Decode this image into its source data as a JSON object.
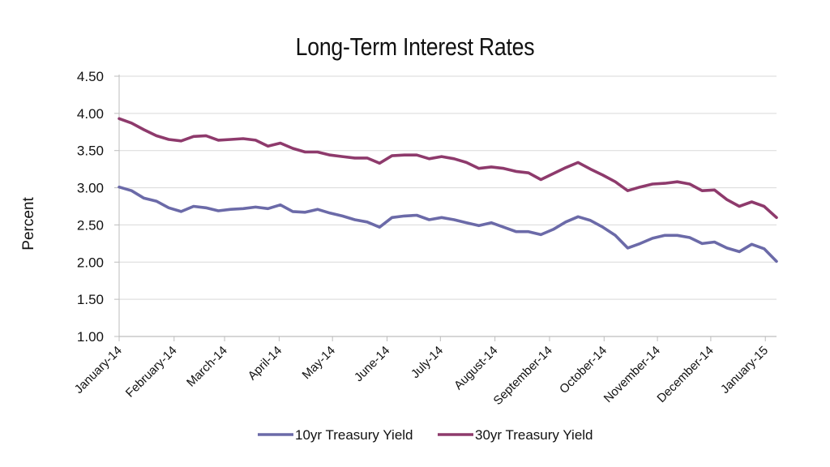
{
  "chart_data": {
    "type": "line",
    "title": "Long-Term Interest Rates",
    "xlabel": "",
    "ylabel": "Percent",
    "ylim": [
      1.0,
      4.5
    ],
    "yticks": [
      "1.00",
      "1.50",
      "2.00",
      "2.50",
      "3.00",
      "3.50",
      "4.00",
      "4.50"
    ],
    "ytick_values": [
      1.0,
      1.5,
      2.0,
      2.5,
      3.0,
      3.5,
      4.0,
      4.5
    ],
    "grid": true,
    "legend_position": "bottom",
    "x_tick_labels": [
      "January-14",
      "February-14",
      "March-14",
      "April-14",
      "May-14",
      "June-14",
      "July-14",
      "August-14",
      "September-14",
      "October-14",
      "November-14",
      "December-14",
      "January-15"
    ],
    "x_tick_positions_weeks": [
      0,
      4.43,
      8.5,
      12.9,
      17.2,
      21.6,
      25.9,
      30.3,
      34.7,
      39.1,
      43.4,
      47.7,
      52.1
    ],
    "points_per_series": 54,
    "series": [
      {
        "name": "10yr Treasury Yield",
        "color": "#6b6aa8",
        "values": [
          3.01,
          2.96,
          2.86,
          2.82,
          2.73,
          2.68,
          2.75,
          2.73,
          2.69,
          2.71,
          2.72,
          2.74,
          2.72,
          2.77,
          2.68,
          2.67,
          2.71,
          2.66,
          2.62,
          2.57,
          2.54,
          2.47,
          2.6,
          2.62,
          2.63,
          2.57,
          2.6,
          2.57,
          2.53,
          2.49,
          2.53,
          2.47,
          2.41,
          2.41,
          2.37,
          2.44,
          2.54,
          2.61,
          2.56,
          2.47,
          2.36,
          2.19,
          2.25,
          2.32,
          2.36,
          2.36,
          2.33,
          2.25,
          2.27,
          2.19,
          2.14,
          2.24,
          2.18,
          2.01
        ]
      },
      {
        "name": "30yr Treasury Yield",
        "color": "#8e3a6c",
        "values": [
          3.93,
          3.87,
          3.78,
          3.7,
          3.65,
          3.63,
          3.69,
          3.7,
          3.64,
          3.65,
          3.66,
          3.64,
          3.56,
          3.6,
          3.53,
          3.48,
          3.48,
          3.44,
          3.42,
          3.4,
          3.4,
          3.33,
          3.43,
          3.44,
          3.44,
          3.39,
          3.42,
          3.39,
          3.34,
          3.26,
          3.28,
          3.26,
          3.22,
          3.2,
          3.11,
          3.19,
          3.27,
          3.34,
          3.25,
          3.17,
          3.08,
          2.96,
          3.01,
          3.05,
          3.06,
          3.08,
          3.05,
          2.96,
          2.97,
          2.84,
          2.75,
          2.81,
          2.75,
          2.6
        ]
      }
    ]
  }
}
